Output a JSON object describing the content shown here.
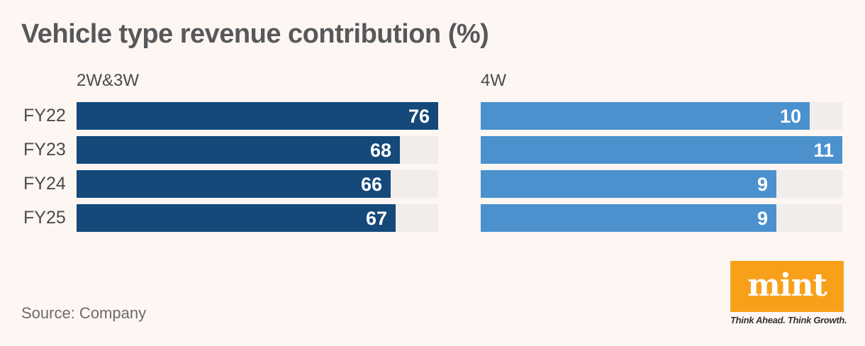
{
  "chart_data": {
    "type": "bar",
    "orientation": "horizontal",
    "title": "Vehicle type revenue contribution (%)",
    "categories": [
      "FY22",
      "FY23",
      "FY24",
      "FY25"
    ],
    "series": [
      {
        "name": "2W&3W",
        "values": [
          76,
          68,
          66,
          67
        ],
        "color": "#14497a",
        "axis_max": 76
      },
      {
        "name": "4W",
        "values": [
          10,
          11,
          9,
          9
        ],
        "color": "#4b91ce",
        "axis_max": 11
      }
    ],
    "value_labels": "inside-end",
    "track_color": "#f0edeb",
    "grid": "off",
    "legend_position": "above-each-panel"
  },
  "footer": {
    "source": "Source: Company",
    "logo_text": "mint",
    "logo_tagline": "Think Ahead. Think Growth."
  },
  "colors": {
    "background": "#fdf6f3",
    "title_text": "#58585a",
    "label_text": "#4b4b4b",
    "value_text": "#ffffff",
    "bar_dark_blue": "#14497a",
    "bar_light_blue": "#4b91ce",
    "bar_track": "#f0edeb",
    "logo_orange": "#f9a01b",
    "source_text": "#6f6a68"
  }
}
